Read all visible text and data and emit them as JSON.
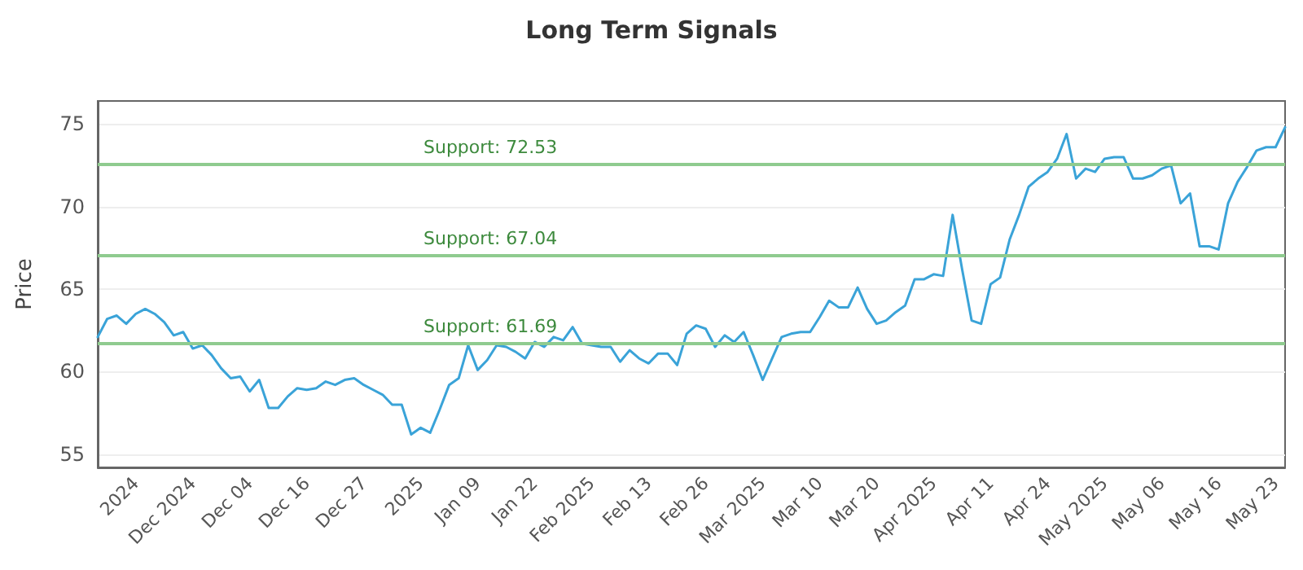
{
  "chart_data": {
    "type": "line",
    "title": "Long Term Signals",
    "ylabel": "Price",
    "categories": [
      null,
      null,
      null,
      null,
      "2024",
      null,
      null,
      null,
      null,
      null,
      "Dec 2024",
      null,
      null,
      null,
      null,
      null,
      "Dec 04",
      null,
      null,
      null,
      null,
      null,
      "Dec 16",
      null,
      null,
      null,
      null,
      null,
      "Dec 27",
      null,
      null,
      null,
      null,
      null,
      "2025",
      null,
      null,
      null,
      null,
      null,
      "Jan 09",
      null,
      null,
      null,
      null,
      null,
      "Jan 22",
      null,
      null,
      null,
      null,
      null,
      "Feb 2025",
      null,
      null,
      null,
      null,
      null,
      "Feb 13",
      null,
      null,
      null,
      null,
      null,
      "Feb 26",
      null,
      null,
      null,
      null,
      null,
      "Mar 2025",
      null,
      null,
      null,
      null,
      null,
      "Mar 10",
      null,
      null,
      null,
      null,
      null,
      "Mar 20",
      null,
      null,
      null,
      null,
      null,
      "Apr 2025",
      null,
      null,
      null,
      null,
      null,
      "Apr 11",
      null,
      null,
      null,
      null,
      null,
      "Apr 24",
      null,
      null,
      null,
      null,
      null,
      "May 2025",
      null,
      null,
      null,
      null,
      null,
      "May 06",
      null,
      null,
      null,
      null,
      null,
      "May 16",
      null,
      null,
      null,
      null,
      null,
      "May 23",
      null
    ],
    "series": [
      {
        "color": "#3aa3d8",
        "values": [
          62.1,
          63.2,
          63.4,
          62.9,
          63.5,
          63.8,
          63.5,
          63.0,
          62.2,
          62.4,
          61.4,
          61.6,
          61.0,
          60.2,
          59.6,
          59.7,
          58.8,
          59.5,
          57.8,
          57.8,
          58.5,
          59.0,
          58.9,
          59.0,
          59.4,
          59.2,
          59.5,
          59.6,
          59.2,
          58.9,
          58.6,
          58.0,
          58.0,
          56.2,
          56.6,
          56.3,
          57.7,
          59.2,
          59.6,
          61.6,
          60.1,
          60.7,
          61.6,
          61.5,
          61.2,
          60.8,
          61.8,
          61.5,
          62.1,
          61.9,
          62.7,
          61.7,
          61.6,
          61.5,
          61.5,
          60.6,
          61.3,
          60.8,
          60.5,
          61.1,
          61.1,
          60.4,
          62.3,
          62.8,
          62.6,
          61.5,
          62.2,
          61.8,
          62.4,
          61.0,
          59.5,
          60.8,
          62.1,
          62.3,
          62.4,
          62.4,
          63.3,
          64.3,
          63.9,
          63.9,
          65.1,
          63.8,
          62.9,
          63.1,
          63.6,
          64.0,
          65.6,
          65.6,
          65.9,
          65.8,
          69.5,
          66.2,
          63.1,
          62.9,
          65.3,
          65.7,
          68.0,
          69.5,
          71.2,
          71.7,
          72.1,
          72.9,
          74.4,
          71.7,
          72.3,
          72.1,
          72.9,
          73.0,
          73.0,
          71.7,
          71.7,
          71.9,
          72.3,
          72.5,
          70.2,
          70.8,
          67.6,
          67.6,
          67.4,
          70.2,
          71.5,
          72.4,
          73.4,
          73.6,
          73.6,
          74.8
        ]
      }
    ],
    "ylim": [
      54.2,
      76.4
    ],
    "yticks": [
      55,
      60,
      65,
      70,
      75
    ],
    "grid": "y",
    "marker": "none",
    "line_style": "solid",
    "ref_lines": [
      {
        "axis": "y",
        "value": 72.53,
        "label": "Support: 72.53",
        "color": "#8fcb8f"
      },
      {
        "axis": "y",
        "value": 67.04,
        "label": "Support: 67.04",
        "color": "#8fcb8f"
      },
      {
        "axis": "y",
        "value": 61.69,
        "label": "Support: 61.69",
        "color": "#8fcb8f"
      }
    ]
  }
}
